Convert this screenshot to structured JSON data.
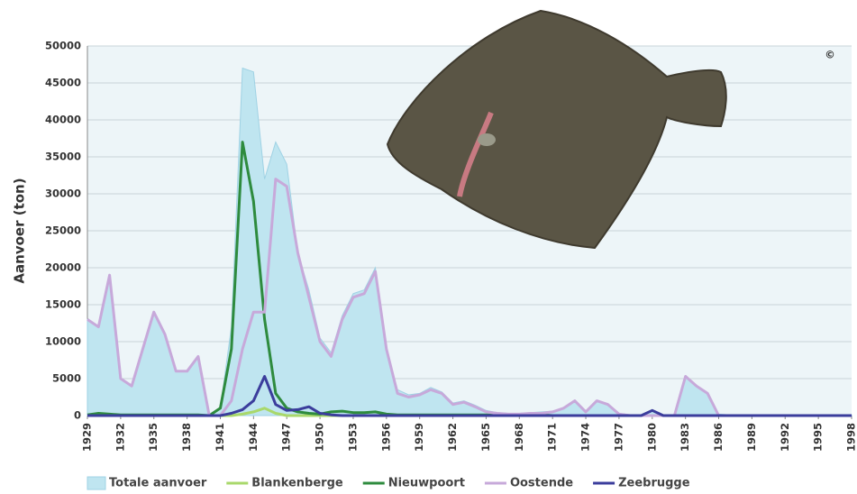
{
  "chart_data": {
    "type": "line",
    "y_label": "Aanvoer (ton)",
    "annotation": "©",
    "x": [
      1929,
      1930,
      1931,
      1932,
      1933,
      1934,
      1935,
      1936,
      1937,
      1938,
      1939,
      1940,
      1941,
      1942,
      1943,
      1944,
      1945,
      1946,
      1947,
      1948,
      1949,
      1950,
      1951,
      1952,
      1953,
      1954,
      1955,
      1956,
      1957,
      1958,
      1959,
      1960,
      1961,
      1962,
      1963,
      1964,
      1965,
      1966,
      1967,
      1968,
      1969,
      1970,
      1971,
      1972,
      1973,
      1974,
      1975,
      1976,
      1977,
      1978,
      1979,
      1980,
      1981,
      1982,
      1983,
      1984,
      1985,
      1986,
      1987,
      1988,
      1989,
      1990,
      1991,
      1992,
      1993,
      1994,
      1995,
      1996,
      1997,
      1998
    ],
    "xlim": [
      1929,
      1998
    ],
    "xticks": [
      1929,
      1932,
      1935,
      1938,
      1941,
      1944,
      1947,
      1950,
      1953,
      1956,
      1959,
      1962,
      1965,
      1968,
      1971,
      1974,
      1977,
      1980,
      1983,
      1986,
      1989,
      1992,
      1995,
      1998
    ],
    "ylim": [
      0,
      50000
    ],
    "yticks": [
      0,
      5000,
      10000,
      15000,
      20000,
      25000,
      30000,
      35000,
      40000,
      45000,
      50000
    ],
    "grid": true,
    "legend": "bottom",
    "series": [
      {
        "name": "Totale aanvoer",
        "style": "area",
        "color": "#bfe5f0",
        "values": [
          13000,
          12000,
          19000,
          5000,
          4000,
          9000,
          14000,
          11000,
          6000,
          6000,
          8000,
          0,
          1000,
          12000,
          47000,
          46500,
          32000,
          37000,
          34000,
          22000,
          17000,
          10500,
          8500,
          13500,
          16500,
          17000,
          20000,
          9000,
          3500,
          2800,
          3000,
          3800,
          3200,
          1700,
          2000,
          1400,
          700,
          400,
          300,
          300,
          400,
          500,
          600,
          1000,
          2000,
          600,
          2000,
          1500,
          300,
          100,
          100,
          700,
          100,
          100,
          5300,
          4000,
          3000,
          200,
          100,
          100,
          100,
          100,
          100,
          100,
          100,
          100,
          100,
          100,
          100,
          100
        ]
      },
      {
        "name": "Blankenberge",
        "style": "line",
        "color": "#a9d86b",
        "values": [
          0,
          0,
          0,
          0,
          0,
          0,
          0,
          0,
          0,
          0,
          0,
          0,
          0,
          0,
          200,
          500,
          1000,
          300,
          0,
          0,
          0,
          0,
          0,
          0,
          0,
          0,
          0,
          0,
          0,
          0,
          0,
          0,
          0,
          0,
          0,
          0,
          0,
          0,
          0,
          0,
          0,
          0,
          0,
          0,
          0,
          0,
          0,
          0,
          0,
          0,
          0,
          0,
          0,
          0,
          0,
          0,
          0,
          0,
          0,
          0,
          0,
          0,
          0,
          0,
          0,
          0,
          0,
          0,
          0,
          0
        ]
      },
      {
        "name": "Nieuwpoort",
        "style": "line",
        "color": "#2e8b3e",
        "values": [
          100,
          300,
          200,
          100,
          100,
          100,
          100,
          100,
          100,
          100,
          100,
          0,
          1000,
          9000,
          37000,
          29000,
          13000,
          3000,
          1000,
          500,
          300,
          200,
          500,
          600,
          400,
          400,
          500,
          200,
          100,
          100,
          100,
          100,
          100,
          100,
          100,
          100,
          100,
          100,
          100,
          100,
          100,
          100,
          0,
          0,
          0,
          0,
          0,
          0,
          0,
          0,
          0,
          0,
          0,
          0,
          0,
          0,
          0,
          0,
          0,
          0,
          0,
          0,
          0,
          0,
          0,
          0,
          0,
          0,
          0,
          0
        ]
      },
      {
        "name": "Oostende",
        "style": "line",
        "color": "#c7a9da",
        "values": [
          13000,
          12000,
          19000,
          5000,
          4000,
          9000,
          14000,
          11000,
          6000,
          6000,
          8000,
          0,
          0,
          2000,
          9000,
          14000,
          14000,
          32000,
          31000,
          22000,
          16000,
          10000,
          8000,
          13000,
          16000,
          16500,
          19500,
          9000,
          3000,
          2500,
          2800,
          3500,
          3000,
          1500,
          1800,
          1200,
          500,
          300,
          200,
          200,
          300,
          300,
          500,
          1000,
          2000,
          500,
          2000,
          1500,
          200,
          0,
          0,
          0,
          0,
          0,
          5300,
          4000,
          3000,
          0,
          0,
          0,
          0,
          0,
          0,
          0,
          0,
          0,
          0,
          0,
          0,
          0
        ]
      },
      {
        "name": "Zeebrugge",
        "style": "line",
        "color": "#3b3d9c",
        "values": [
          0,
          0,
          0,
          0,
          0,
          0,
          0,
          0,
          0,
          0,
          0,
          0,
          0,
          300,
          800,
          2000,
          5300,
          1500,
          700,
          800,
          1200,
          300,
          100,
          0,
          0,
          0,
          0,
          0,
          0,
          0,
          0,
          0,
          0,
          0,
          0,
          0,
          0,
          0,
          0,
          0,
          0,
          0,
          0,
          0,
          0,
          0,
          0,
          0,
          0,
          0,
          0,
          700,
          0,
          0,
          0,
          0,
          0,
          0,
          0,
          0,
          0,
          0,
          0,
          0,
          0,
          0,
          0,
          0,
          0,
          0
        ]
      }
    ]
  }
}
